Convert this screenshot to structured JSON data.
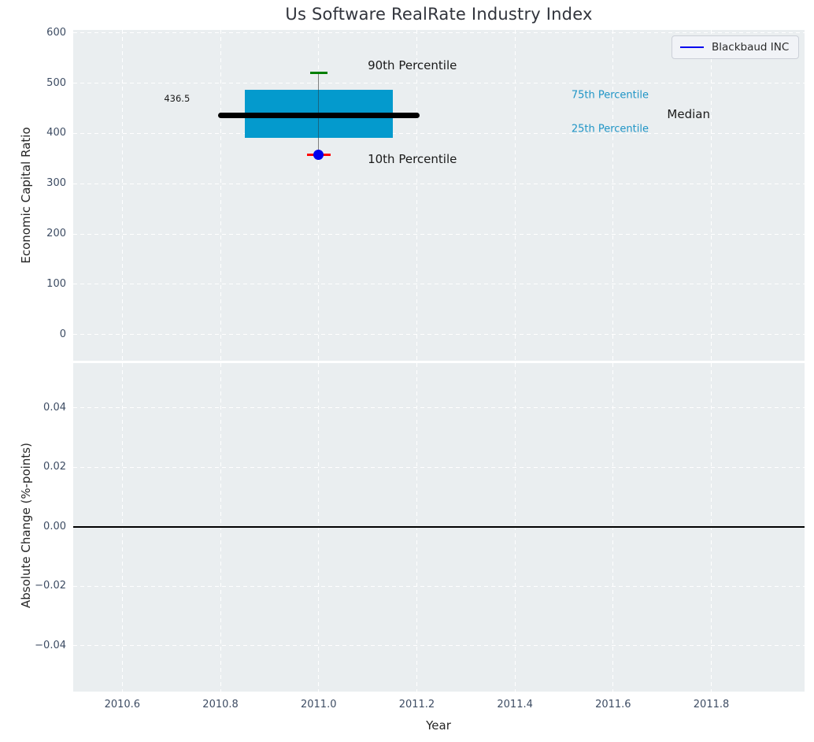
{
  "title": "Us Software RealRate Industry Index",
  "legend": {
    "label": "Blackbaud INC",
    "line_color": "#0000ee"
  },
  "colors": {
    "axes_bg": "#eaeef0",
    "grid": "#ffffff",
    "tick": "#3d4c63",
    "axis_label": "#262626",
    "annotation_dark": "#1a1a1a",
    "percentile_label": "#2095c6",
    "box_fill": "#049acd",
    "median_line": "#000000",
    "whisker": "#808080",
    "cap_top": "#007f00",
    "cap_bottom": "#ff0000",
    "dot": "#0000ee",
    "zero_line": "#000000"
  },
  "chart_data": [
    {
      "type": "boxplot",
      "title": "Us Software RealRate Industry Index",
      "ylabel": "Economic Capital Ratio",
      "xlabel": "",
      "xlim": [
        2010.5,
        2011.99
      ],
      "ylim": [
        -52,
        606
      ],
      "grid": true,
      "show_xtick_labels": false,
      "xticks": [
        {
          "v": 2010.6,
          "label": "2010.6"
        },
        {
          "v": 2010.8,
          "label": "2010.8"
        },
        {
          "v": 2011.0,
          "label": "2011.0"
        },
        {
          "v": 2011.2,
          "label": "2011.2"
        },
        {
          "v": 2011.4,
          "label": "2011.4"
        },
        {
          "v": 2011.6,
          "label": "2011.6"
        },
        {
          "v": 2011.8,
          "label": "2011.8"
        }
      ],
      "yticks": [
        {
          "v": 0,
          "label": "0"
        },
        {
          "v": 100,
          "label": "100"
        },
        {
          "v": 200,
          "label": "200"
        },
        {
          "v": 300,
          "label": "300"
        },
        {
          "v": 400,
          "label": "400"
        },
        {
          "v": 500,
          "label": "500"
        },
        {
          "v": 600,
          "label": "600"
        }
      ],
      "box": {
        "name": "Blackbaud INC",
        "x": 2011.0,
        "p90": 520,
        "p75": 487,
        "median": 436.5,
        "p25": 391,
        "p10": 358,
        "dot_value": 358,
        "box_halfwidth": 0.151,
        "median_halfwidth": 0.205,
        "cap_top_halfwidth": 0.018,
        "cap_bottom_halfwidth": 0.024
      },
      "annotations": [
        {
          "text": "436.5",
          "x": 2010.685,
          "y": 470,
          "size": 11.5,
          "color": "#1a1a1a"
        },
        {
          "text": "90th Percentile",
          "x": 2011.1,
          "y": 536,
          "size": 15,
          "color": "#1a1a1a"
        },
        {
          "text": "10th Percentile",
          "x": 2011.1,
          "y": 349,
          "size": 15,
          "color": "#1a1a1a"
        },
        {
          "text": "75th Percentile",
          "x": 2011.515,
          "y": 476,
          "size": 13,
          "color": "#2095c6"
        },
        {
          "text": "25th Percentile",
          "x": 2011.515,
          "y": 409,
          "size": 13,
          "color": "#2095c6"
        },
        {
          "text": "Median",
          "x": 2011.71,
          "y": 438,
          "size": 15,
          "color": "#1a1a1a"
        }
      ],
      "legend_entries": [
        {
          "label": "Blackbaud INC",
          "color": "#0000ee",
          "style": "line"
        }
      ]
    },
    {
      "type": "line",
      "title": "",
      "ylabel": "Absolute Change (%-points)",
      "xlabel": "Year",
      "xlim": [
        2010.5,
        2011.99
      ],
      "ylim": [
        -0.0554,
        0.0551
      ],
      "grid": true,
      "show_xtick_labels": true,
      "zero_line": 0.0,
      "xticks": [
        {
          "v": 2010.6,
          "label": "2010.6"
        },
        {
          "v": 2010.8,
          "label": "2010.8"
        },
        {
          "v": 2011.0,
          "label": "2011.0"
        },
        {
          "v": 2011.2,
          "label": "2011.2"
        },
        {
          "v": 2011.4,
          "label": "2011.4"
        },
        {
          "v": 2011.6,
          "label": "2011.6"
        },
        {
          "v": 2011.8,
          "label": "2011.8"
        }
      ],
      "yticks": [
        {
          "v": -0.04,
          "label": "−0.04"
        },
        {
          "v": -0.02,
          "label": "−0.02"
        },
        {
          "v": 0.0,
          "label": "0.00"
        },
        {
          "v": 0.02,
          "label": "0.02"
        },
        {
          "v": 0.04,
          "label": "0.04"
        }
      ],
      "series": []
    }
  ]
}
